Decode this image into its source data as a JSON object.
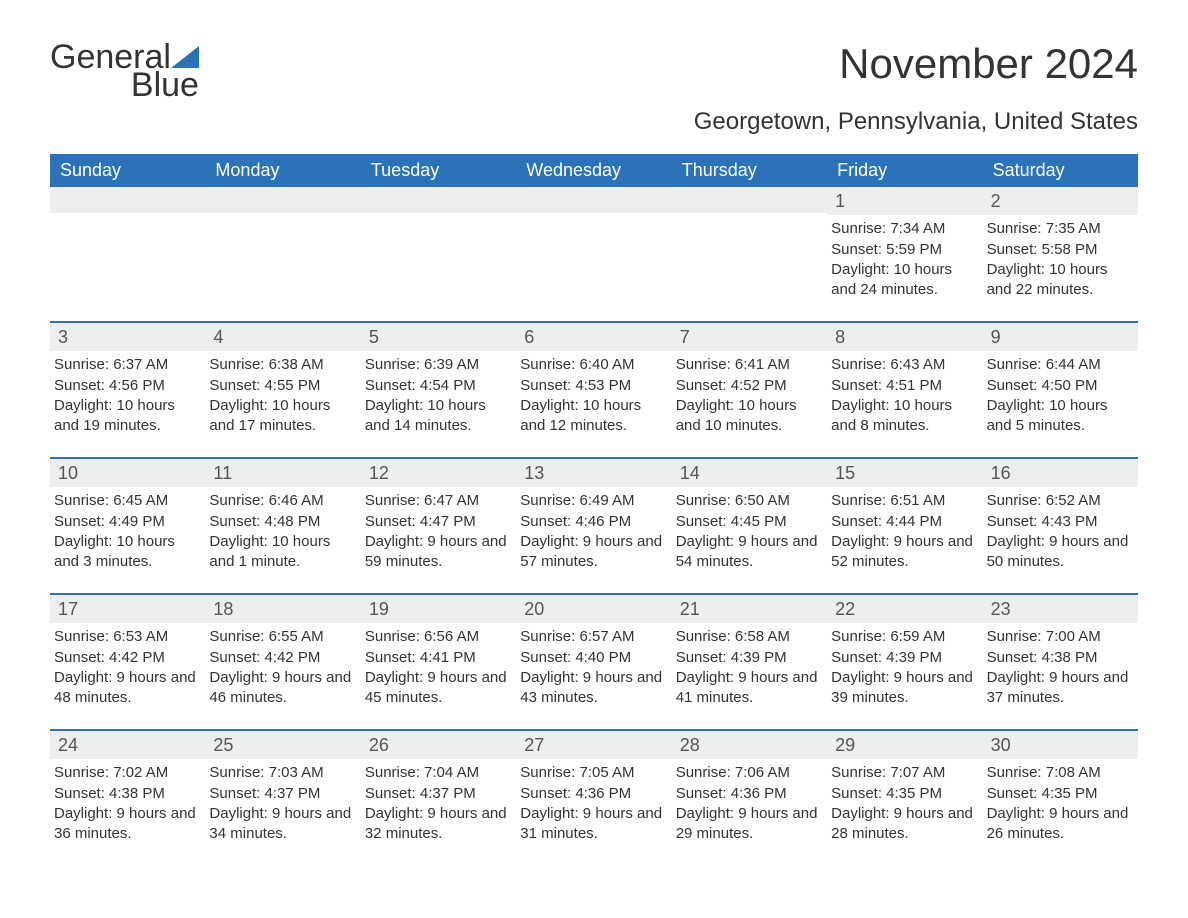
{
  "logo": {
    "textGeneral": "General",
    "textBlue": "Blue",
    "sailColor": "#2b72b8"
  },
  "title": "November 2024",
  "subtitle": "Georgetown, Pennsylvania, United States",
  "colors": {
    "headerBg": "#2b72b8",
    "headerText": "#ffffff",
    "dayBarBg": "#eeeeee",
    "borderTop": "#2b72b8",
    "bodyText": "#333333"
  },
  "daysOfWeek": [
    "Sunday",
    "Monday",
    "Tuesday",
    "Wednesday",
    "Thursday",
    "Friday",
    "Saturday"
  ],
  "startOffset": 5,
  "days": [
    {
      "n": 1,
      "sunrise": "7:34 AM",
      "sunset": "5:59 PM",
      "daylight": "10 hours and 24 minutes."
    },
    {
      "n": 2,
      "sunrise": "7:35 AM",
      "sunset": "5:58 PM",
      "daylight": "10 hours and 22 minutes."
    },
    {
      "n": 3,
      "sunrise": "6:37 AM",
      "sunset": "4:56 PM",
      "daylight": "10 hours and 19 minutes."
    },
    {
      "n": 4,
      "sunrise": "6:38 AM",
      "sunset": "4:55 PM",
      "daylight": "10 hours and 17 minutes."
    },
    {
      "n": 5,
      "sunrise": "6:39 AM",
      "sunset": "4:54 PM",
      "daylight": "10 hours and 14 minutes."
    },
    {
      "n": 6,
      "sunrise": "6:40 AM",
      "sunset": "4:53 PM",
      "daylight": "10 hours and 12 minutes."
    },
    {
      "n": 7,
      "sunrise": "6:41 AM",
      "sunset": "4:52 PM",
      "daylight": "10 hours and 10 minutes."
    },
    {
      "n": 8,
      "sunrise": "6:43 AM",
      "sunset": "4:51 PM",
      "daylight": "10 hours and 8 minutes."
    },
    {
      "n": 9,
      "sunrise": "6:44 AM",
      "sunset": "4:50 PM",
      "daylight": "10 hours and 5 minutes."
    },
    {
      "n": 10,
      "sunrise": "6:45 AM",
      "sunset": "4:49 PM",
      "daylight": "10 hours and 3 minutes."
    },
    {
      "n": 11,
      "sunrise": "6:46 AM",
      "sunset": "4:48 PM",
      "daylight": "10 hours and 1 minute."
    },
    {
      "n": 12,
      "sunrise": "6:47 AM",
      "sunset": "4:47 PM",
      "daylight": "9 hours and 59 minutes."
    },
    {
      "n": 13,
      "sunrise": "6:49 AM",
      "sunset": "4:46 PM",
      "daylight": "9 hours and 57 minutes."
    },
    {
      "n": 14,
      "sunrise": "6:50 AM",
      "sunset": "4:45 PM",
      "daylight": "9 hours and 54 minutes."
    },
    {
      "n": 15,
      "sunrise": "6:51 AM",
      "sunset": "4:44 PM",
      "daylight": "9 hours and 52 minutes."
    },
    {
      "n": 16,
      "sunrise": "6:52 AM",
      "sunset": "4:43 PM",
      "daylight": "9 hours and 50 minutes."
    },
    {
      "n": 17,
      "sunrise": "6:53 AM",
      "sunset": "4:42 PM",
      "daylight": "9 hours and 48 minutes."
    },
    {
      "n": 18,
      "sunrise": "6:55 AM",
      "sunset": "4:42 PM",
      "daylight": "9 hours and 46 minutes."
    },
    {
      "n": 19,
      "sunrise": "6:56 AM",
      "sunset": "4:41 PM",
      "daylight": "9 hours and 45 minutes."
    },
    {
      "n": 20,
      "sunrise": "6:57 AM",
      "sunset": "4:40 PM",
      "daylight": "9 hours and 43 minutes."
    },
    {
      "n": 21,
      "sunrise": "6:58 AM",
      "sunset": "4:39 PM",
      "daylight": "9 hours and 41 minutes."
    },
    {
      "n": 22,
      "sunrise": "6:59 AM",
      "sunset": "4:39 PM",
      "daylight": "9 hours and 39 minutes."
    },
    {
      "n": 23,
      "sunrise": "7:00 AM",
      "sunset": "4:38 PM",
      "daylight": "9 hours and 37 minutes."
    },
    {
      "n": 24,
      "sunrise": "7:02 AM",
      "sunset": "4:38 PM",
      "daylight": "9 hours and 36 minutes."
    },
    {
      "n": 25,
      "sunrise": "7:03 AM",
      "sunset": "4:37 PM",
      "daylight": "9 hours and 34 minutes."
    },
    {
      "n": 26,
      "sunrise": "7:04 AM",
      "sunset": "4:37 PM",
      "daylight": "9 hours and 32 minutes."
    },
    {
      "n": 27,
      "sunrise": "7:05 AM",
      "sunset": "4:36 PM",
      "daylight": "9 hours and 31 minutes."
    },
    {
      "n": 28,
      "sunrise": "7:06 AM",
      "sunset": "4:36 PM",
      "daylight": "9 hours and 29 minutes."
    },
    {
      "n": 29,
      "sunrise": "7:07 AM",
      "sunset": "4:35 PM",
      "daylight": "9 hours and 28 minutes."
    },
    {
      "n": 30,
      "sunrise": "7:08 AM",
      "sunset": "4:35 PM",
      "daylight": "9 hours and 26 minutes."
    }
  ],
  "labels": {
    "sunrise": "Sunrise: ",
    "sunset": "Sunset: ",
    "daylight": "Daylight: "
  }
}
